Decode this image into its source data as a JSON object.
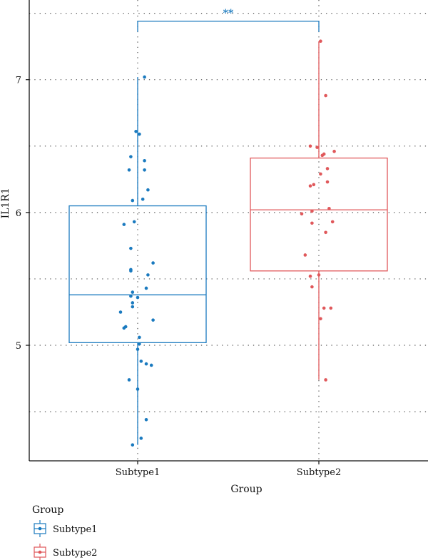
{
  "chart_data": {
    "type": "box",
    "xlabel": "Group",
    "ylabel": "IL1R1",
    "ylim": [
      4.13,
      7.6
    ],
    "yticks": [
      5,
      6,
      7
    ],
    "minor_yticks": [
      4.5,
      5.5,
      6.5,
      7.5
    ],
    "categories": [
      "Subtype1",
      "Subtype2"
    ],
    "grid": "dotted",
    "legend": {
      "title": "Group",
      "position": "bottom-left"
    },
    "series": [
      {
        "name": "Subtype1",
        "color": "#1a7abf",
        "box": {
          "whisker_low": 4.25,
          "q1": 5.02,
          "median": 5.38,
          "q3": 6.05,
          "whisker_high": 7.02
        },
        "points": [
          [
            0.04,
            7.02
          ],
          [
            -0.01,
            6.61
          ],
          [
            0.01,
            6.59
          ],
          [
            -0.04,
            6.42
          ],
          [
            0.04,
            6.39
          ],
          [
            -0.05,
            6.32
          ],
          [
            0.04,
            6.32
          ],
          [
            0.06,
            6.17
          ],
          [
            0.03,
            6.1
          ],
          [
            -0.03,
            6.09
          ],
          [
            -0.08,
            5.91
          ],
          [
            -0.02,
            5.93
          ],
          [
            -0.04,
            5.73
          ],
          [
            0.09,
            5.62
          ],
          [
            -0.04,
            5.57
          ],
          [
            -0.04,
            5.56
          ],
          [
            0.06,
            5.53
          ],
          [
            0.05,
            5.43
          ],
          [
            -0.03,
            5.4
          ],
          [
            -0.04,
            5.37
          ],
          [
            0.0,
            5.36
          ],
          [
            -0.03,
            5.32
          ],
          [
            -0.03,
            5.29
          ],
          [
            -0.1,
            5.25
          ],
          [
            0.09,
            5.19
          ],
          [
            -0.07,
            5.14
          ],
          [
            -0.08,
            5.13
          ],
          [
            0.01,
            5.06
          ],
          [
            0.01,
            5.01
          ],
          [
            0.0,
            4.97
          ],
          [
            0.02,
            4.88
          ],
          [
            0.05,
            4.86
          ],
          [
            0.08,
            4.85
          ],
          [
            -0.05,
            4.74
          ],
          [
            0.0,
            4.67
          ],
          [
            0.05,
            4.44
          ],
          [
            0.02,
            4.3
          ],
          [
            -0.03,
            4.25
          ]
        ]
      },
      {
        "name": "Subtype2",
        "color": "#e0585b",
        "box": {
          "whisker_low": 4.74,
          "q1": 5.56,
          "median": 6.02,
          "q3": 6.41,
          "whisker_high": 7.29
        },
        "points": [
          [
            0.01,
            7.29
          ],
          [
            0.04,
            6.88
          ],
          [
            -0.05,
            6.5
          ],
          [
            -0.01,
            6.49
          ],
          [
            0.09,
            6.46
          ],
          [
            0.03,
            6.44
          ],
          [
            0.02,
            6.43
          ],
          [
            0.05,
            6.33
          ],
          [
            0.01,
            6.29
          ],
          [
            -0.03,
            6.21
          ],
          [
            -0.05,
            6.2
          ],
          [
            0.05,
            6.23
          ],
          [
            0.06,
            6.03
          ],
          [
            -0.04,
            6.01
          ],
          [
            -0.1,
            5.99
          ],
          [
            -0.04,
            5.92
          ],
          [
            0.08,
            5.93
          ],
          [
            0.04,
            5.85
          ],
          [
            -0.08,
            5.68
          ],
          [
            0.0,
            5.53
          ],
          [
            -0.05,
            5.52
          ],
          [
            -0.04,
            5.44
          ],
          [
            0.03,
            5.28
          ],
          [
            0.07,
            5.28
          ],
          [
            0.01,
            5.2
          ],
          [
            0.04,
            4.74
          ]
        ]
      }
    ],
    "significance": {
      "label": "**",
      "color": "#1a7abf",
      "y": 7.44
    }
  }
}
